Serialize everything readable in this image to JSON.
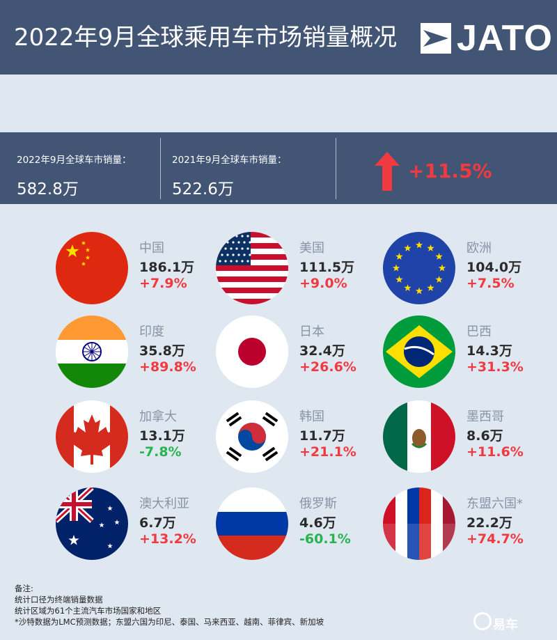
{
  "header": {
    "title": "2022年9月全球乘用车市场销量概况",
    "logo_text": "JATO"
  },
  "summary": {
    "label_2022": "2022年9月全球车市销量：",
    "value_2022": "582.8万",
    "label_2021": "2021年9月全球车市销量：",
    "value_2021": "522.6万",
    "growth": "+11.5%",
    "growth_icon": "up-arrow-icon"
  },
  "countries": [
    {
      "name": "中国",
      "value": "186.1万",
      "change": "+7.9%",
      "flag": "china"
    },
    {
      "name": "美国",
      "value": "111.5万",
      "change": "+9.0%",
      "flag": "usa"
    },
    {
      "name": "欧洲",
      "value": "104.0万",
      "change": "+7.5%",
      "flag": "eu"
    },
    {
      "name": "印度",
      "value": "35.8万",
      "change": "+89.8%",
      "flag": "india"
    },
    {
      "name": "日本",
      "value": "32.4万",
      "change": "+26.6%",
      "flag": "japan"
    },
    {
      "name": "巴西",
      "value": "14.3万",
      "change": "+31.3%",
      "flag": "brazil"
    },
    {
      "name": "加拿大",
      "value": "13.1万",
      "change": "-7.8%",
      "flag": "canada"
    },
    {
      "name": "韩国",
      "value": "11.7万",
      "change": "+21.1%",
      "flag": "korea"
    },
    {
      "name": "墨西哥",
      "value": "8.6万",
      "change": "+11.6%",
      "flag": "mexico"
    },
    {
      "name": "澳大利亚",
      "value": "6.7万",
      "change": "+13.2%",
      "flag": "australia"
    },
    {
      "name": "俄罗斯",
      "value": "4.6万",
      "change": "-60.1%",
      "flag": "russia"
    },
    {
      "name": "东盟六国*",
      "value": "22.2万",
      "change": "+74.7%",
      "flag": "asean"
    }
  ],
  "notes": {
    "heading": "备注:",
    "line1": "统计口径为终端销量数据",
    "line2": "统计区域为61个主流汽车市场国家和地区",
    "line3": "*沙特数据为LMC预测数据；东盟六国为印尼、泰国、马来西亚、越南、菲律宾、新加坡"
  },
  "watermark": "易车",
  "colors": {
    "header_bg": "#435574",
    "page_bg": "#dfe7f1",
    "positive": "#f03a3f",
    "negative": "#27b34f"
  }
}
